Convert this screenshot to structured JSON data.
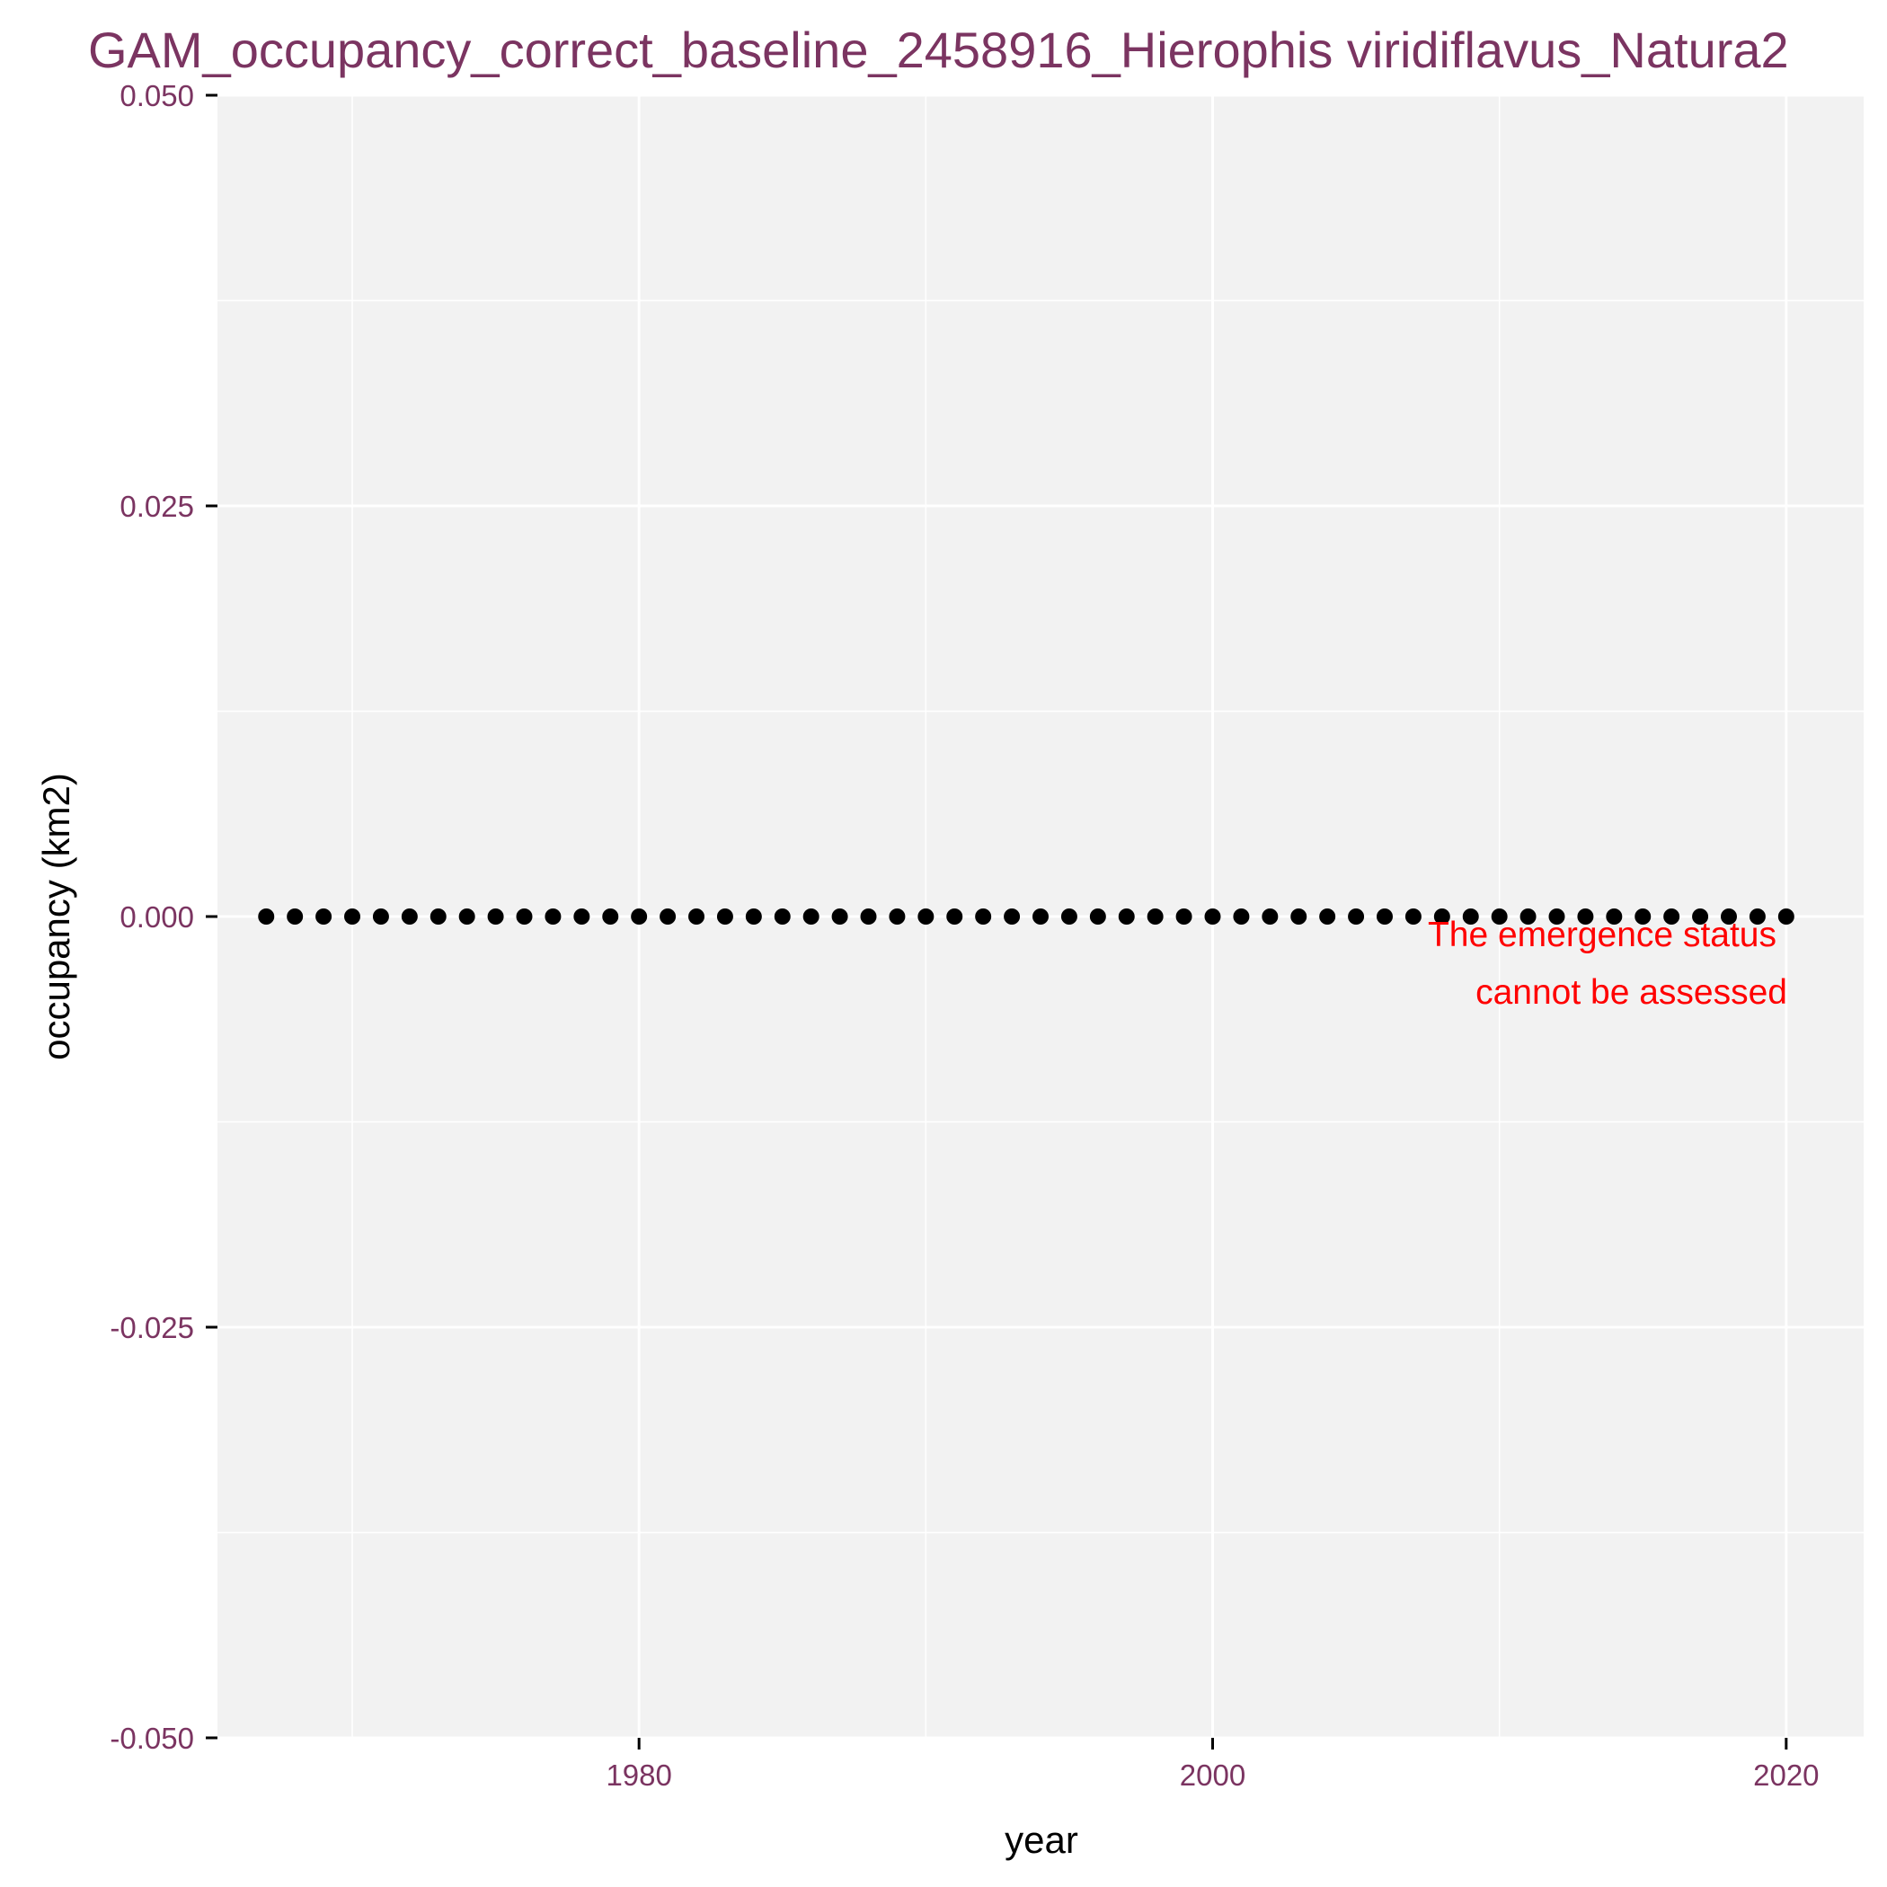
{
  "chart_data": {
    "type": "scatter",
    "title": "GAM_occupancy_correct_baseline_2458916_Hierophis viridiflavus_Natura2",
    "xlabel": "year",
    "ylabel": "occupancy (km2)",
    "xlim": [
      1965.3,
      2022.7
    ],
    "ylim": [
      -0.05,
      0.05
    ],
    "x_ticks": [
      1980,
      2000,
      2020
    ],
    "x_tick_labels": [
      "1980",
      "2000",
      "2020"
    ],
    "y_ticks": [
      0.05,
      0.025,
      0.0,
      -0.025,
      -0.05
    ],
    "y_tick_labels": [
      "0.050",
      "0.025",
      "0.000",
      "-0.025",
      "-0.050"
    ],
    "x_minor_ticks": [
      1970,
      1990,
      2010
    ],
    "y_minor_ticks": [
      0.0375,
      0.0125,
      -0.0125,
      -0.0375
    ],
    "grid": true,
    "point_color": "#000000",
    "panel_color": "#f2f2f2",
    "grid_color": "#ffffff",
    "x": [
      1967,
      1968,
      1969,
      1970,
      1971,
      1972,
      1973,
      1974,
      1975,
      1976,
      1977,
      1978,
      1979,
      1980,
      1981,
      1982,
      1983,
      1984,
      1985,
      1986,
      1987,
      1988,
      1989,
      1990,
      1991,
      1992,
      1993,
      1994,
      1995,
      1996,
      1997,
      1998,
      1999,
      2000,
      2001,
      2002,
      2003,
      2004,
      2005,
      2006,
      2007,
      2008,
      2009,
      2010,
      2011,
      2012,
      2013,
      2014,
      2015,
      2016,
      2017,
      2018,
      2019,
      2020
    ],
    "y": [
      0,
      0,
      0,
      0,
      0,
      0,
      0,
      0,
      0,
      0,
      0,
      0,
      0,
      0,
      0,
      0,
      0,
      0,
      0,
      0,
      0,
      0,
      0,
      0,
      0,
      0,
      0,
      0,
      0,
      0,
      0,
      0,
      0,
      0,
      0,
      0,
      0,
      0,
      0,
      0,
      0,
      0,
      0,
      0,
      0,
      0,
      0,
      0,
      0,
      0,
      0,
      0,
      0,
      0
    ],
    "annotation": {
      "lines": [
        "The emergence status",
        "cannot be assessed"
      ],
      "color": "#ff0000"
    }
  }
}
